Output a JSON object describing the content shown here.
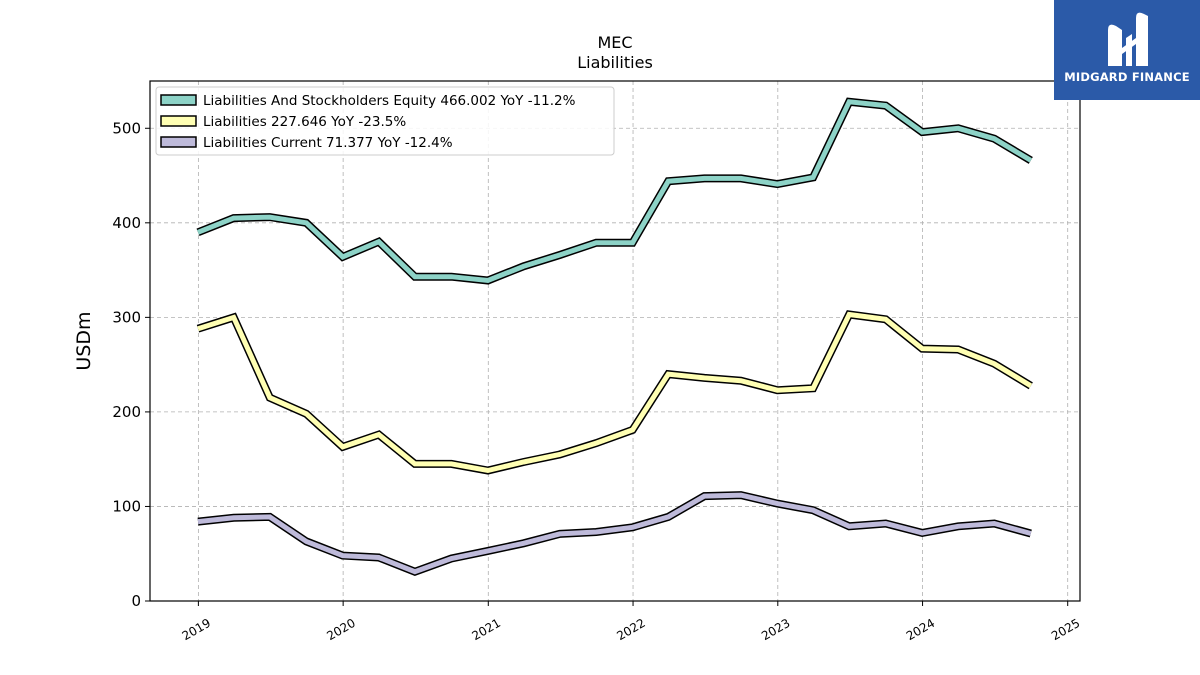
{
  "chart_data": {
    "type": "line",
    "title": "MEC",
    "subtitle": "Liabilities",
    "ylabel": "USDm",
    "xlabel": "",
    "ylim": [
      0,
      550
    ],
    "yticks": [
      0,
      100,
      200,
      300,
      400,
      500
    ],
    "xlim": [
      "2018-09-01",
      "2025-02-01"
    ],
    "xticks": [
      "2019",
      "2020",
      "2021",
      "2022",
      "2023",
      "2024",
      "2025"
    ],
    "grid": true,
    "legend_position": "top-left",
    "dates": [
      "2018-12-31",
      "2019-03-31",
      "2019-06-30",
      "2019-09-30",
      "2019-12-31",
      "2020-03-31",
      "2020-06-30",
      "2020-09-30",
      "2020-12-31",
      "2021-03-31",
      "2021-06-30",
      "2021-09-30",
      "2021-12-31",
      "2022-03-31",
      "2022-06-30",
      "2022-09-30",
      "2022-12-31",
      "2023-03-31",
      "2023-06-30",
      "2023-09-30",
      "2023-12-31",
      "2024-03-31",
      "2024-06-30",
      "2024-09-30"
    ],
    "series": [
      {
        "name": "Liabilities And Stockholders Equity",
        "legend": "Liabilities And Stockholders Equity  466.002 YoY -11.2%",
        "color": "#8dd3c7",
        "values": [
          390,
          405,
          406,
          400,
          364,
          380,
          343,
          343,
          339,
          354,
          366,
          379,
          379,
          444,
          447,
          447,
          441,
          448,
          528,
          524,
          496,
          500,
          489,
          466.002
        ]
      },
      {
        "name": "Liabilities",
        "legend": "Liabilities  227.646 YoY -23.5%",
        "color": "#ffffb3",
        "values": [
          288,
          300,
          215,
          198,
          163,
          176,
          145,
          145,
          138,
          147,
          155,
          167,
          181,
          240,
          236,
          233,
          223,
          225,
          303,
          298,
          267,
          266,
          251,
          227.646
        ]
      },
      {
        "name": "Liabilities Current",
        "legend": "Liabilities Current  71.377 YoY -12.4%",
        "color": "#bebada",
        "values": [
          84,
          88,
          89,
          63,
          48,
          46,
          31,
          45,
          53,
          61,
          71,
          73,
          78,
          89,
          111,
          112,
          103,
          96,
          79,
          82,
          72,
          79,
          82,
          71.377
        ]
      }
    ]
  },
  "brand": {
    "name": "MIDGARD FINANCE",
    "color": "#2b5aa8",
    "icon": "midgard-logo-icon"
  }
}
